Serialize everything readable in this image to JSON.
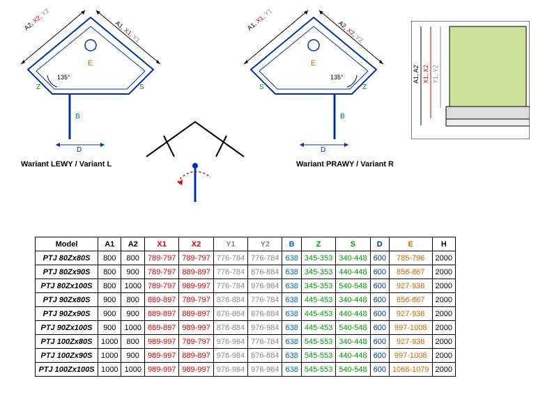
{
  "captions": {
    "left": "Wariant LEWY / Variant L",
    "right": "Wariant PRAWY / Variant R"
  },
  "diagram": {
    "angle_label": "135°",
    "labels": {
      "A1": {
        "text": "A1",
        "color": "#000"
      },
      "A2": {
        "text": "A2",
        "color": "#000"
      },
      "X1": {
        "text": "X1",
        "color": "#d00"
      },
      "X2": {
        "text": "X2",
        "color": "#d00"
      },
      "Y1": {
        "text": "Y1",
        "color": "#888"
      },
      "Y2": {
        "text": "Y2",
        "color": "#888"
      },
      "B": {
        "text": "B",
        "color": "#06c"
      },
      "Z": {
        "text": "Z",
        "color": "#090"
      },
      "S": {
        "text": "S",
        "color": "#090"
      },
      "D": {
        "text": "D",
        "color": "#039"
      },
      "E": {
        "text": "E",
        "color": "#c60"
      },
      "H": {
        "text": "H",
        "color": "#000"
      }
    },
    "colors": {
      "outline": "#039",
      "fill": "#eef",
      "sidepanel_fill": "#cde29a",
      "arrow_red": "#d00"
    }
  },
  "table": {
    "header": [
      {
        "text": "Model",
        "color": "#000"
      },
      {
        "text": "A1",
        "color": "#000"
      },
      {
        "text": "A2",
        "color": "#000"
      },
      {
        "text": "X1",
        "color": "#d00"
      },
      {
        "text": "X2",
        "color": "#d00"
      },
      {
        "text": "Y1",
        "color": "#888"
      },
      {
        "text": "Y2",
        "color": "#888"
      },
      {
        "text": "B",
        "color": "#06c"
      },
      {
        "text": "Z",
        "color": "#090"
      },
      {
        "text": "S",
        "color": "#090"
      },
      {
        "text": "D",
        "color": "#039"
      },
      {
        "text": "E",
        "color": "#c60"
      },
      {
        "text": "H",
        "color": "#000"
      }
    ],
    "rows": [
      [
        "PTJ 80Zx80S",
        "800",
        "800",
        "789-797",
        "789-797",
        "776-784",
        "776-784",
        "638",
        "345-353",
        "340-448",
        "600",
        "785-796",
        "2000"
      ],
      [
        "PTJ 80Zx90S",
        "800",
        "900",
        "789-797",
        "889-897",
        "776-784",
        "876-884",
        "638",
        "345-353",
        "440-448",
        "600",
        "856-867",
        "2000"
      ],
      [
        "PTJ 80Zx100S",
        "800",
        "1000",
        "789-797",
        "989-997",
        "776-784",
        "976-984",
        "638",
        "345-353",
        "540-548",
        "600",
        "927-938",
        "2000"
      ],
      [
        "PTJ 90Zx80S",
        "900",
        "800",
        "889-897",
        "789-797",
        "876-884",
        "776-784",
        "638",
        "445-453",
        "340-448",
        "600",
        "856-867",
        "2000"
      ],
      [
        "PTJ 90Zx90S",
        "900",
        "900",
        "889-897",
        "889-897",
        "876-884",
        "876-884",
        "638",
        "445-453",
        "440-448",
        "600",
        "927-938",
        "2000"
      ],
      [
        "PTJ 90Zx100S",
        "900",
        "1000",
        "889-897",
        "989-997",
        "876-884",
        "976-984",
        "638",
        "445-453",
        "540-548",
        "600",
        "997-1008",
        "2000"
      ],
      [
        "PTJ 100Zx80S",
        "1000",
        "800",
        "989-997",
        "789-797",
        "976-984",
        "776-784",
        "638",
        "545-553",
        "340-448",
        "600",
        "927-938",
        "2000"
      ],
      [
        "PTJ 100Zx90S",
        "1000",
        "900",
        "989-997",
        "889-897",
        "976-984",
        "876-884",
        "638",
        "545-553",
        "440-448",
        "600",
        "997-1008",
        "2000"
      ],
      [
        "PTJ 100Zx100S",
        "1000",
        "1000",
        "989-997",
        "989-997",
        "976-984",
        "976-984",
        "638",
        "545-553",
        "540-548",
        "600",
        "1068-1079",
        "2000"
      ]
    ]
  }
}
